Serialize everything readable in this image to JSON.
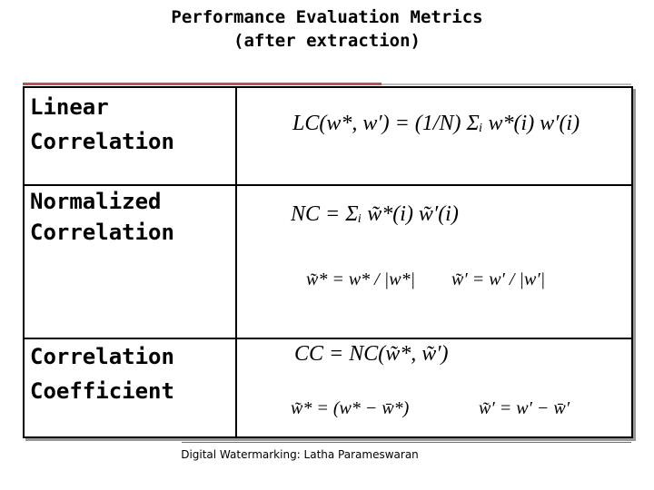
{
  "header": {
    "title": [
      "Performance Evaluation Metrics",
      "(after extraction)"
    ]
  },
  "table": {
    "rows": [
      {
        "label": [
          "Linear",
          "Correlation"
        ],
        "formulas": [
          "LC(w*, w′) = (1/N) Σᵢ w*(i) w′(i)"
        ]
      },
      {
        "label": [
          "Normalized",
          "Correlation"
        ],
        "formulas": [
          "NC = Σᵢ w̃*(i) w̃′(i)",
          "w̃* = w* / |w*|",
          "w̃′ = w′ / |w′|"
        ]
      },
      {
        "label": [
          "Correlation",
          "Coefficient"
        ],
        "formulas": [
          "CC = NC(w̃*, w̃′)",
          "w̃* = (w* − w̄*)",
          "w̃′ = w′ − w̄′"
        ]
      }
    ]
  },
  "footer": "Digital Watermarking: Latha Parameswaran"
}
